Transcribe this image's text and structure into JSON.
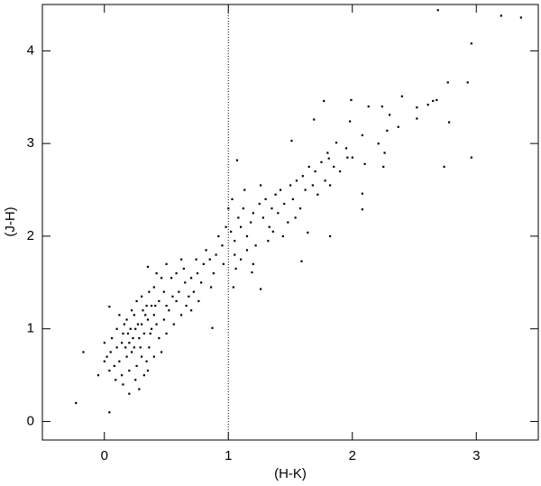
{
  "chart_data": {
    "type": "scatter",
    "xlabel": "(H-K)",
    "ylabel": "(J-H)",
    "xlim": [
      -0.5,
      3.5
    ],
    "ylim": [
      -0.2,
      4.5
    ],
    "xticks": [
      0,
      1,
      2,
      3
    ],
    "yticks": [
      0,
      1,
      2,
      3,
      4
    ],
    "vline": 1,
    "color": "#000000",
    "x": [
      0.1,
      0.15,
      0.2,
      0.25,
      0.3,
      0.35,
      0.4,
      0.18,
      0.22,
      0.28,
      0.32,
      0.38,
      0.42,
      0.12,
      0.08,
      0.05,
      0.16,
      0.24,
      0.34,
      0.44,
      0.5,
      0.55,
      0.48,
      0.52,
      0.6,
      0.65,
      0.58,
      0.7,
      0.75,
      0.68,
      0.2,
      0.26,
      0.14,
      0.3,
      0.36,
      0.1,
      0.06,
      0.02,
      0.0,
      0.04,
      0.22,
      0.3,
      0.4,
      0.46,
      0.26,
      0.18,
      0.12,
      0.34,
      0.44,
      0.5,
      0.56,
      0.62,
      0.66,
      0.72,
      0.78,
      0.8,
      0.85,
      0.9,
      0.88,
      0.95,
      0.82,
      0.74,
      0.64,
      0.54,
      0.92,
      0.98,
      0.96,
      0.86,
      0.76,
      0.7,
      0.15,
      0.25,
      0.35,
      0.09,
      0.2,
      0.28,
      0.32,
      0.4,
      0.46,
      0.24,
      -0.05,
      0.0,
      0.14,
      0.36,
      0.42,
      0.5,
      0.38,
      0.48,
      0.58,
      0.62,
      0.27,
      0.33,
      0.19,
      0.23,
      0.29,
      0.37,
      0.41,
      0.31,
      0.17,
      0.21,
      1.02,
      1.05,
      1.08,
      1.1,
      1.12,
      1.15,
      1.18,
      1.2,
      1.22,
      1.25,
      1.28,
      1.3,
      1.33,
      1.35,
      1.38,
      1.4,
      1.42,
      1.45,
      1.48,
      1.5,
      1.52,
      1.55,
      1.58,
      1.6,
      1.62,
      1.65,
      1.68,
      1.7,
      1.75,
      1.78,
      1.05,
      1.1,
      1.15,
      1.2,
      1.0,
      1.03,
      1.06,
      1.13,
      1.26,
      1.32,
      1.36,
      1.44,
      1.54,
      1.8,
      1.85,
      1.9,
      1.95,
      2.0,
      1.72,
      1.82,
      2.69,
      3.2,
      3.36,
      2.96,
      2.77,
      2.93,
      2.68,
      2.65,
      2.61,
      2.4,
      1.99,
      2.13,
      2.24,
      2.52,
      2.52,
      2.78,
      2.3,
      2.37,
      2.96,
      2.74,
      2.26,
      2.21,
      2.08,
      2.28,
      1.77,
      1.98,
      1.87,
      1.96,
      1.69,
      1.51,
      1.07,
      2.1,
      2.25,
      1.81,
      2.08,
      2.08,
      1.82,
      1.64,
      0.87,
      -0.23,
      0.04,
      -0.17,
      0.04,
      0.35,
      1.59,
      1.19,
      1.26,
      1.04
    ],
    "values": [
      0.8,
      0.95,
      0.85,
      1.0,
      1.05,
      1.1,
      1.15,
      0.7,
      0.75,
      0.9,
      0.95,
      1.0,
      1.05,
      0.65,
      0.6,
      0.75,
      1.05,
      1.15,
      1.25,
      1.3,
      1.25,
      1.35,
      1.1,
      1.2,
      1.4,
      1.5,
      1.3,
      1.55,
      1.6,
      1.35,
      0.55,
      0.6,
      0.5,
      0.7,
      0.8,
      1.0,
      0.9,
      0.7,
      0.65,
      0.55,
      1.2,
      1.35,
      1.45,
      1.55,
      1.3,
      1.1,
      1.15,
      0.65,
      0.9,
      0.95,
      1.05,
      1.15,
      1.25,
      1.4,
      1.5,
      1.7,
      1.75,
      1.8,
      1.6,
      1.9,
      1.85,
      1.75,
      1.65,
      1.55,
      2.0,
      2.1,
      1.7,
      1.45,
      1.3,
      1.2,
      0.4,
      0.45,
      0.55,
      0.45,
      0.3,
      0.35,
      0.5,
      0.7,
      0.75,
      0.8,
      0.5,
      0.85,
      0.85,
      1.4,
      1.6,
      1.7,
      1.25,
      1.4,
      1.6,
      1.75,
      1.05,
      1.15,
      0.95,
      0.9,
      0.8,
      0.95,
      1.25,
      1.2,
      0.8,
      1.0,
      2.05,
      1.95,
      2.2,
      2.1,
      2.3,
      2.0,
      2.15,
      2.25,
      1.9,
      2.35,
      2.2,
      2.4,
      2.1,
      2.3,
      2.45,
      2.25,
      2.5,
      2.35,
      2.15,
      2.55,
      2.4,
      2.6,
      2.3,
      2.65,
      2.5,
      2.75,
      2.55,
      2.7,
      2.8,
      2.6,
      1.8,
      1.75,
      1.85,
      1.7,
      2.3,
      2.4,
      1.65,
      2.5,
      2.55,
      1.95,
      2.05,
      2.0,
      2.2,
      2.9,
      2.75,
      2.7,
      2.95,
      2.85,
      2.45,
      2.55,
      4.44,
      4.38,
      4.36,
      4.08,
      3.66,
      3.66,
      3.47,
      3.46,
      3.42,
      3.51,
      3.47,
      3.4,
      3.4,
      3.39,
      3.27,
      3.23,
      3.31,
      3.18,
      2.85,
      2.75,
      2.9,
      3.0,
      3.09,
      3.14,
      3.46,
      3.24,
      3.01,
      2.85,
      3.26,
      3.03,
      2.82,
      2.78,
      2.75,
      2.84,
      2.46,
      2.29,
      2.0,
      2.04,
      1.01,
      0.2,
      0.1,
      0.75,
      1.24,
      1.67,
      1.73,
      1.61,
      1.43,
      1.45
    ]
  }
}
